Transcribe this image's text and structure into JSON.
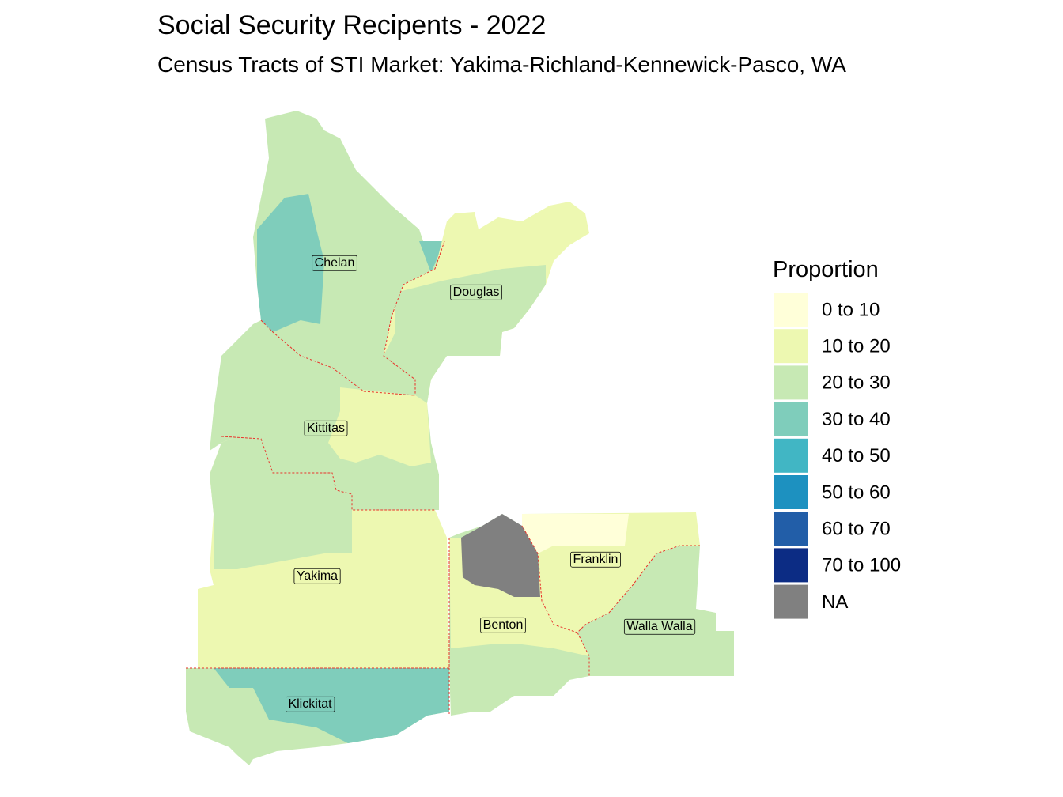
{
  "title": "Social Security Recipents - 2022",
  "subtitle": "Census Tracts of STI Market: Yakima-Richland-Kennewick-Pasco, WA",
  "legend": {
    "title": "Proportion",
    "items": [
      {
        "label": "0 to 10",
        "color": "#ffffd9"
      },
      {
        "label": "10 to 20",
        "color": "#edf8b1"
      },
      {
        "label": "20 to 30",
        "color": "#c7e9b4"
      },
      {
        "label": "30 to 40",
        "color": "#7fcdbb"
      },
      {
        "label": "40 to 50",
        "color": "#41b6c4"
      },
      {
        "label": "50 to 60",
        "color": "#1d91c0"
      },
      {
        "label": "60 to 70",
        "color": "#225ea8"
      },
      {
        "label": "70 to 100",
        "color": "#0c2c84"
      },
      {
        "label": "NA",
        "color": "#808080"
      }
    ]
  },
  "counties": [
    {
      "label": "Chelan"
    },
    {
      "label": "Douglas"
    },
    {
      "label": "Kittitas"
    },
    {
      "label": "Yakima"
    },
    {
      "label": "Franklin"
    },
    {
      "label": "Benton"
    },
    {
      "label": "Walla Walla"
    },
    {
      "label": "Klickitat"
    }
  ]
}
